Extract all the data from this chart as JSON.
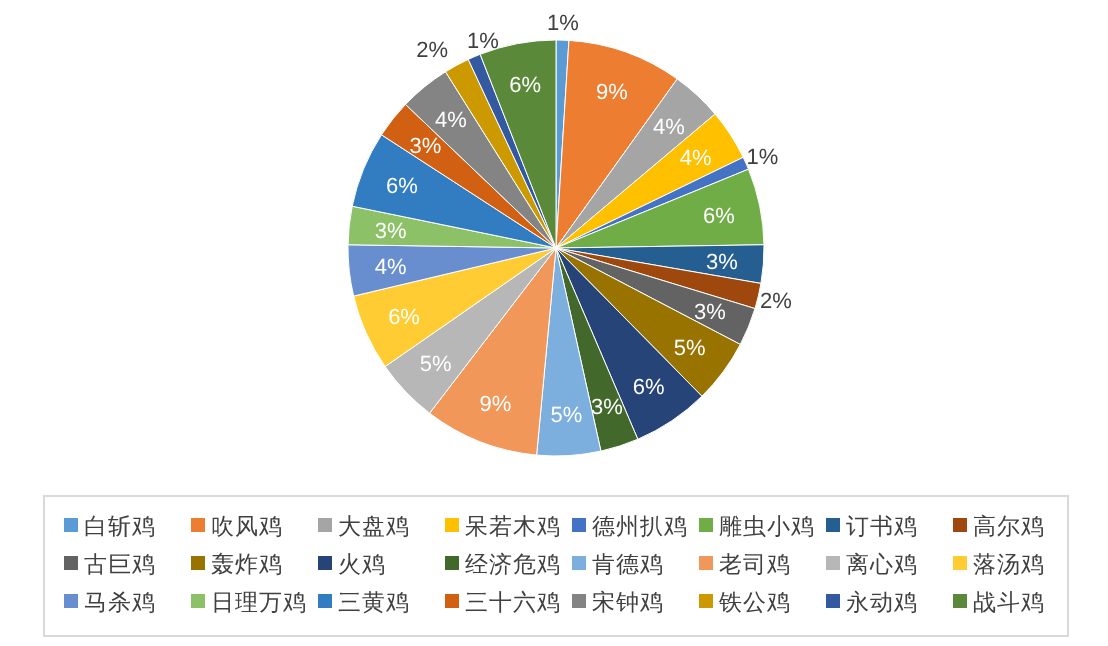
{
  "chart_data": {
    "type": "pie",
    "legend": "bottom",
    "categories": [
      "白斩鸡",
      "吹风鸡",
      "大盘鸡",
      "呆若木鸡",
      "德州扒鸡",
      "雕虫小鸡",
      "订书鸡",
      "高尔鸡",
      "古巨鸡",
      "轰炸鸡",
      "火鸡",
      "经济危鸡",
      "肯德鸡",
      "老司鸡",
      "离心鸡",
      "落汤鸡",
      "马杀鸡",
      "日理万鸡",
      "三黄鸡",
      "三十六鸡",
      "宋钟鸡",
      "铁公鸡",
      "永动鸡",
      "战斗鸡"
    ],
    "values": [
      1,
      9,
      4,
      4,
      1,
      6,
      3,
      2,
      3,
      5,
      6,
      3,
      5,
      9,
      5,
      6,
      4,
      3,
      6,
      3,
      4,
      2,
      1,
      6
    ],
    "value_labels": [
      "1%",
      "9%",
      "4%",
      "4%",
      "1%",
      "6%",
      "3%",
      "2%",
      "3%",
      "5%",
      "6%",
      "3%",
      "5%",
      "9%",
      "5%",
      "6%",
      "4%",
      "3%",
      "6%",
      "3%",
      "4%",
      "2%",
      "1%",
      "6%"
    ],
    "colors": [
      "#5b9bd5",
      "#ed7d31",
      "#a5a5a5",
      "#ffc000",
      "#4472c4",
      "#70ad47",
      "#255e91",
      "#9e480e",
      "#636363",
      "#997300",
      "#264478",
      "#43682b",
      "#7cafdd",
      "#f1975a",
      "#b7b7b7",
      "#ffcd33",
      "#698ed0",
      "#8cc168",
      "#327dc2",
      "#d26012",
      "#848484",
      "#cc9a00",
      "#335aa1",
      "#5a8a39"
    ]
  }
}
